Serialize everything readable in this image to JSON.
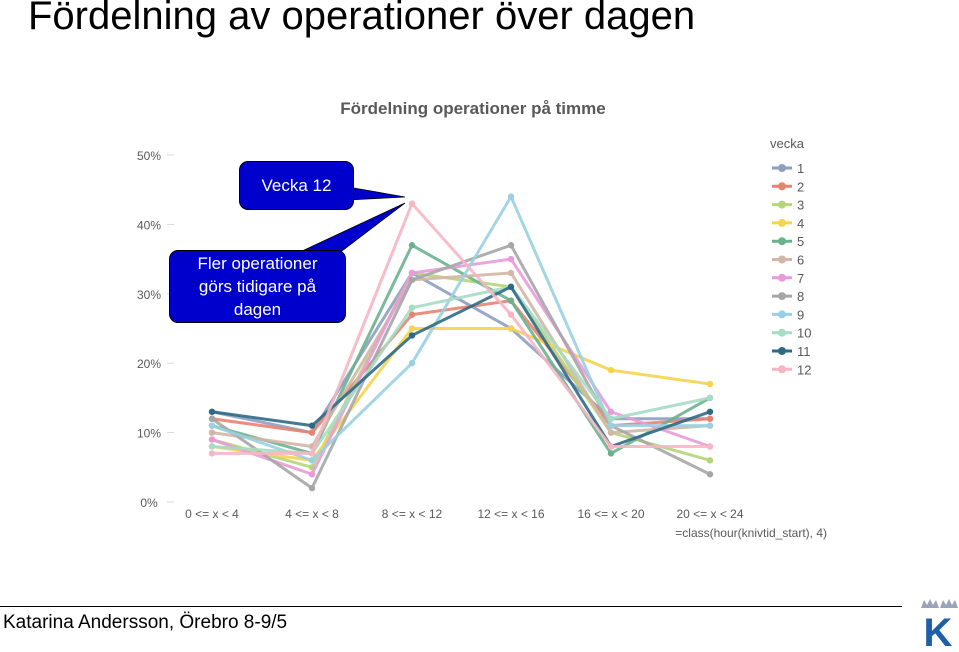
{
  "slide": {
    "title": "Fördelning av operationer över dagen",
    "footer": "Katarina Andersson, Örebro 8-9/5"
  },
  "callouts": {
    "week12": "Vecka 12",
    "line1": "Fler operationer",
    "line2": "görs tidigare på",
    "line3": "dagen"
  },
  "logo": {
    "letter": "K"
  },
  "chart_data": {
    "type": "line",
    "title": "Fördelning operationer på timme",
    "xlabel": "=class(hour(knivtid_start), 4)",
    "ylabel": "",
    "categories": [
      "0 <= x < 4",
      "4 <= x < 8",
      "8 <= x < 12",
      "12 <= x < 16",
      "16 <= x < 20",
      "20 <= x < 24"
    ],
    "ylim": [
      0,
      50
    ],
    "yticks": [
      0,
      10,
      20,
      30,
      40,
      50
    ],
    "ytick_labels": [
      "0%",
      "10%",
      "20%",
      "30%",
      "40%",
      "50%"
    ],
    "legend_title": "vecka",
    "legend_position": "right",
    "grid": false,
    "series": [
      {
        "name": "1",
        "color": "#8e9fc0",
        "values": [
          13,
          10,
          33,
          25,
          12,
          12
        ]
      },
      {
        "name": "2",
        "color": "#e8836f",
        "values": [
          12,
          10,
          27,
          29,
          11,
          12
        ]
      },
      {
        "name": "3",
        "color": "#b6d57a",
        "values": [
          9,
          5,
          33,
          31,
          10,
          6
        ]
      },
      {
        "name": "4",
        "color": "#f5d44c",
        "values": [
          8,
          6,
          25,
          25,
          19,
          17
        ]
      },
      {
        "name": "5",
        "color": "#6cb18e",
        "values": [
          11,
          7,
          37,
          29,
          7,
          15
        ]
      },
      {
        "name": "6",
        "color": "#d2b7a6",
        "values": [
          10,
          8,
          32,
          33,
          10,
          11
        ]
      },
      {
        "name": "7",
        "color": "#e99bd9",
        "values": [
          9,
          4,
          33,
          35,
          13,
          8
        ]
      },
      {
        "name": "8",
        "color": "#a6a6a6",
        "values": [
          12,
          2,
          32,
          37,
          11,
          4
        ]
      },
      {
        "name": "9",
        "color": "#9ad0e2",
        "values": [
          11,
          6,
          20,
          44,
          11,
          11
        ]
      },
      {
        "name": "10",
        "color": "#a5dcc4",
        "values": [
          8,
          7,
          28,
          31,
          12,
          15
        ]
      },
      {
        "name": "11",
        "color": "#2f6a85",
        "values": [
          13,
          11,
          24,
          31,
          8,
          13
        ]
      },
      {
        "name": "12",
        "color": "#f5b6c4",
        "values": [
          7,
          7,
          43,
          27,
          8,
          8
        ]
      }
    ]
  }
}
